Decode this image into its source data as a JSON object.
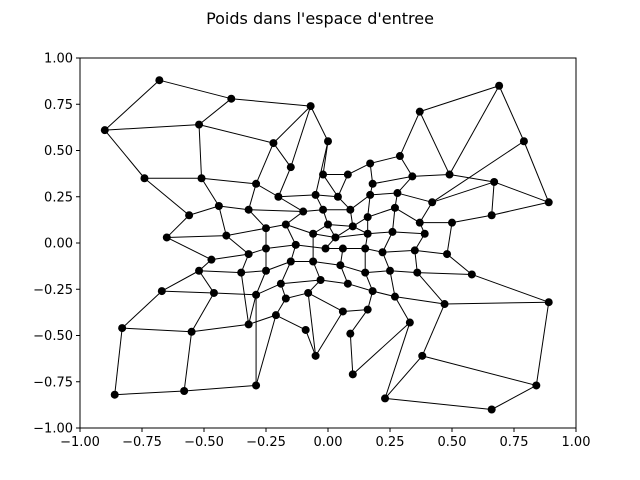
{
  "chart_data": {
    "type": "scatter",
    "title": "Poids dans l'espace d'entree",
    "xlabel": "",
    "ylabel": "",
    "xlim": [
      -1.0,
      1.0
    ],
    "ylim": [
      -1.0,
      1.0
    ],
    "xticks": [
      -1.0,
      -0.75,
      -0.5,
      -0.25,
      0.0,
      0.25,
      0.5,
      0.75,
      1.0
    ],
    "xtick_labels": [
      "−1.00",
      "−0.75",
      "−0.50",
      "−0.25",
      "0.00",
      "0.25",
      "0.50",
      "0.75",
      "1.00"
    ],
    "yticks": [
      -1.0,
      -0.75,
      -0.5,
      -0.25,
      0.0,
      0.25,
      0.5,
      0.75,
      1.0
    ],
    "ytick_labels": [
      "−1.00",
      "−0.75",
      "−0.50",
      "−0.25",
      "0.00",
      "0.25",
      "0.50",
      "0.75",
      "1.00"
    ],
    "grid": false,
    "marker_color": "#000000",
    "line_color": "#000000",
    "nodes": [
      {
        "id": "A",
        "x": -0.68,
        "y": 0.88
      },
      {
        "id": "B",
        "x": -0.39,
        "y": 0.78
      },
      {
        "id": "C",
        "x": -0.07,
        "y": 0.74
      },
      {
        "id": "D",
        "x": 0.0,
        "y": 0.55
      },
      {
        "id": "E",
        "x": -0.22,
        "y": 0.54
      },
      {
        "id": "F",
        "x": -0.52,
        "y": 0.64
      },
      {
        "id": "G",
        "x": -0.9,
        "y": 0.61
      },
      {
        "id": "H",
        "x": -0.74,
        "y": 0.35
      },
      {
        "id": "I",
        "x": -0.51,
        "y": 0.35
      },
      {
        "id": "J",
        "x": -0.29,
        "y": 0.32
      },
      {
        "id": "K",
        "x": -0.15,
        "y": 0.41
      },
      {
        "id": "L",
        "x": -0.02,
        "y": 0.37
      },
      {
        "id": "M",
        "x": 0.08,
        "y": 0.37
      },
      {
        "id": "N",
        "x": 0.17,
        "y": 0.43
      },
      {
        "id": "O",
        "x": 0.29,
        "y": 0.47
      },
      {
        "id": "P",
        "x": 0.37,
        "y": 0.71
      },
      {
        "id": "Q",
        "x": 0.69,
        "y": 0.85
      },
      {
        "id": "R",
        "x": 0.79,
        "y": 0.55
      },
      {
        "id": "S",
        "x": 0.89,
        "y": 0.22
      },
      {
        "id": "T",
        "x": 0.67,
        "y": 0.33
      },
      {
        "id": "U",
        "x": 0.49,
        "y": 0.37
      },
      {
        "id": "V",
        "x": 0.34,
        "y": 0.36
      },
      {
        "id": "W",
        "x": 0.18,
        "y": 0.32
      },
      {
        "id": "X",
        "x": -0.05,
        "y": 0.26
      },
      {
        "id": "Y",
        "x": 0.04,
        "y": 0.25
      },
      {
        "id": "Z",
        "x": -0.2,
        "y": 0.25
      },
      {
        "id": "AA",
        "x": -0.44,
        "y": 0.2
      },
      {
        "id": "AB",
        "x": -0.56,
        "y": 0.15
      },
      {
        "id": "AC",
        "x": -0.65,
        "y": 0.03
      },
      {
        "id": "AD",
        "x": -0.41,
        "y": 0.04
      },
      {
        "id": "AE",
        "x": -0.32,
        "y": 0.18
      },
      {
        "id": "AF",
        "x": -0.1,
        "y": 0.17
      },
      {
        "id": "AG",
        "x": -0.02,
        "y": 0.18
      },
      {
        "id": "AH",
        "x": 0.09,
        "y": 0.18
      },
      {
        "id": "AI",
        "x": 0.17,
        "y": 0.26
      },
      {
        "id": "AJ",
        "x": 0.28,
        "y": 0.27
      },
      {
        "id": "AK",
        "x": 0.42,
        "y": 0.22
      },
      {
        "id": "AL",
        "x": 0.66,
        "y": 0.15
      },
      {
        "id": "AM",
        "x": 0.5,
        "y": 0.11
      },
      {
        "id": "AN",
        "x": 0.37,
        "y": 0.11
      },
      {
        "id": "AO",
        "x": 0.27,
        "y": 0.19
      },
      {
        "id": "AP",
        "x": 0.16,
        "y": 0.14
      },
      {
        "id": "AQ",
        "x": 0.1,
        "y": 0.09
      },
      {
        "id": "AR",
        "x": 0.0,
        "y": 0.1
      },
      {
        "id": "AS",
        "x": -0.17,
        "y": 0.1
      },
      {
        "id": "AT",
        "x": -0.25,
        "y": 0.08
      },
      {
        "id": "AU",
        "x": -0.06,
        "y": 0.05
      },
      {
        "id": "AV",
        "x": 0.03,
        "y": 0.03
      },
      {
        "id": "AW",
        "x": 0.16,
        "y": 0.05
      },
      {
        "id": "AX",
        "x": 0.26,
        "y": 0.06
      },
      {
        "id": "AY",
        "x": 0.39,
        "y": 0.05
      },
      {
        "id": "AZ",
        "x": -0.13,
        "y": -0.01
      },
      {
        "id": "BA",
        "x": -0.25,
        "y": -0.03
      },
      {
        "id": "BB",
        "x": -0.32,
        "y": -0.06
      },
      {
        "id": "BC",
        "x": -0.47,
        "y": -0.09
      },
      {
        "id": "BD",
        "x": -0.52,
        "y": -0.15
      },
      {
        "id": "BE",
        "x": -0.35,
        "y": -0.16
      },
      {
        "id": "BF",
        "x": -0.25,
        "y": -0.15
      },
      {
        "id": "BG",
        "x": -0.15,
        "y": -0.1
      },
      {
        "id": "BH",
        "x": -0.06,
        "y": -0.1
      },
      {
        "id": "BI",
        "x": -0.01,
        "y": -0.03
      },
      {
        "id": "BJ",
        "x": 0.06,
        "y": -0.03
      },
      {
        "id": "BK",
        "x": 0.15,
        "y": -0.03
      },
      {
        "id": "BL",
        "x": 0.22,
        "y": -0.05
      },
      {
        "id": "BM",
        "x": 0.35,
        "y": -0.04
      },
      {
        "id": "BN",
        "x": 0.48,
        "y": -0.06
      },
      {
        "id": "BO",
        "x": 0.58,
        "y": -0.17
      },
      {
        "id": "BP",
        "x": 0.36,
        "y": -0.16
      },
      {
        "id": "BQ",
        "x": 0.25,
        "y": -0.15
      },
      {
        "id": "BR",
        "x": 0.15,
        "y": -0.16
      },
      {
        "id": "BS",
        "x": 0.05,
        "y": -0.12
      },
      {
        "id": "BT",
        "x": -0.03,
        "y": -0.2
      },
      {
        "id": "BU",
        "x": -0.08,
        "y": -0.27
      },
      {
        "id": "BV",
        "x": -0.17,
        "y": -0.3
      },
      {
        "id": "BW",
        "x": -0.19,
        "y": -0.22
      },
      {
        "id": "BX",
        "x": -0.29,
        "y": -0.28
      },
      {
        "id": "BY",
        "x": -0.46,
        "y": -0.27
      },
      {
        "id": "BZ",
        "x": -0.67,
        "y": -0.26
      },
      {
        "id": "CA",
        "x": -0.83,
        "y": -0.46
      },
      {
        "id": "CB",
        "x": -0.55,
        "y": -0.48
      },
      {
        "id": "CC",
        "x": -0.32,
        "y": -0.44
      },
      {
        "id": "CD",
        "x": -0.21,
        "y": -0.39
      },
      {
        "id": "CE",
        "x": -0.09,
        "y": -0.47
      },
      {
        "id": "CF",
        "x": -0.05,
        "y": -0.61
      },
      {
        "id": "CG",
        "x": 0.06,
        "y": -0.37
      },
      {
        "id": "CH",
        "x": 0.08,
        "y": -0.22
      },
      {
        "id": "CI",
        "x": 0.18,
        "y": -0.26
      },
      {
        "id": "CJ",
        "x": 0.27,
        "y": -0.29
      },
      {
        "id": "CK",
        "x": 0.16,
        "y": -0.36
      },
      {
        "id": "CL",
        "x": 0.33,
        "y": -0.43
      },
      {
        "id": "CM",
        "x": 0.47,
        "y": -0.33
      },
      {
        "id": "CN",
        "x": 0.89,
        "y": -0.32
      },
      {
        "id": "CO",
        "x": 0.38,
        "y": -0.61
      },
      {
        "id": "CP",
        "x": 0.09,
        "y": -0.49
      },
      {
        "id": "CQ",
        "x": 0.1,
        "y": -0.71
      },
      {
        "id": "CR",
        "x": 0.23,
        "y": -0.84
      },
      {
        "id": "CS",
        "x": 0.66,
        "y": -0.9
      },
      {
        "id": "CT",
        "x": 0.84,
        "y": -0.77
      },
      {
        "id": "CU",
        "x": -0.29,
        "y": -0.77
      },
      {
        "id": "CV",
        "x": -0.58,
        "y": -0.8
      },
      {
        "id": "CW",
        "x": -0.86,
        "y": -0.82
      }
    ],
    "edges": [
      [
        "A",
        "B"
      ],
      [
        "B",
        "C"
      ],
      [
        "C",
        "D"
      ],
      [
        "C",
        "E"
      ],
      [
        "A",
        "G"
      ],
      [
        "G",
        "F"
      ],
      [
        "F",
        "B"
      ],
      [
        "F",
        "E"
      ],
      [
        "E",
        "J"
      ],
      [
        "E",
        "K"
      ],
      [
        "K",
        "C"
      ],
      [
        "K",
        "Z"
      ],
      [
        "D",
        "L"
      ],
      [
        "D",
        "X"
      ],
      [
        "G",
        "H"
      ],
      [
        "F",
        "I"
      ],
      [
        "H",
        "I"
      ],
      [
        "I",
        "J"
      ],
      [
        "H",
        "AB"
      ],
      [
        "I",
        "AA"
      ],
      [
        "J",
        "Z"
      ],
      [
        "J",
        "AE"
      ],
      [
        "AB",
        "AC"
      ],
      [
        "AB",
        "AA"
      ],
      [
        "AA",
        "AD"
      ],
      [
        "AA",
        "AE"
      ],
      [
        "AE",
        "AF"
      ],
      [
        "AE",
        "AT"
      ],
      [
        "AF",
        "Z"
      ],
      [
        "AF",
        "AG"
      ],
      [
        "AF",
        "AS"
      ],
      [
        "Z",
        "X"
      ],
      [
        "X",
        "Y"
      ],
      [
        "X",
        "AG"
      ],
      [
        "Y",
        "L"
      ],
      [
        "Y",
        "M"
      ],
      [
        "Y",
        "AH"
      ],
      [
        "L",
        "M"
      ],
      [
        "M",
        "N"
      ],
      [
        "N",
        "O"
      ],
      [
        "N",
        "W"
      ],
      [
        "O",
        "P"
      ],
      [
        "O",
        "V"
      ],
      [
        "P",
        "Q"
      ],
      [
        "P",
        "U"
      ],
      [
        "Q",
        "R"
      ],
      [
        "Q",
        "U"
      ],
      [
        "R",
        "S"
      ],
      [
        "R",
        "AK"
      ],
      [
        "U",
        "V"
      ],
      [
        "U",
        "T"
      ],
      [
        "T",
        "S"
      ],
      [
        "T",
        "AK"
      ],
      [
        "T",
        "AL"
      ],
      [
        "S",
        "AL"
      ],
      [
        "V",
        "W"
      ],
      [
        "V",
        "AJ"
      ],
      [
        "W",
        "AI"
      ],
      [
        "AI",
        "AJ"
      ],
      [
        "AI",
        "AH"
      ],
      [
        "AI",
        "AP"
      ],
      [
        "AJ",
        "AK"
      ],
      [
        "AJ",
        "AO"
      ],
      [
        "AK",
        "AN"
      ],
      [
        "AL",
        "AM"
      ],
      [
        "AM",
        "AN"
      ],
      [
        "AM",
        "BN"
      ],
      [
        "AN",
        "AO"
      ],
      [
        "AN",
        "AY"
      ],
      [
        "AO",
        "AP"
      ],
      [
        "AO",
        "AX"
      ],
      [
        "AP",
        "AQ"
      ],
      [
        "AP",
        "AW"
      ],
      [
        "AH",
        "AQ"
      ],
      [
        "AH",
        "AG"
      ],
      [
        "AG",
        "AR"
      ],
      [
        "AR",
        "AU"
      ],
      [
        "AR",
        "AQ"
      ],
      [
        "AR",
        "AV"
      ],
      [
        "AQ",
        "AV"
      ],
      [
        "AQ",
        "AW"
      ],
      [
        "AS",
        "AT"
      ],
      [
        "AS",
        "AU"
      ],
      [
        "AS",
        "AZ"
      ],
      [
        "AT",
        "AD"
      ],
      [
        "AT",
        "BA"
      ],
      [
        "AD",
        "AC"
      ],
      [
        "AD",
        "BB"
      ],
      [
        "AC",
        "BC"
      ],
      [
        "BC",
        "BB"
      ],
      [
        "BC",
        "BD"
      ],
      [
        "BB",
        "BA"
      ],
      [
        "BB",
        "BE"
      ],
      [
        "BA",
        "AZ"
      ],
      [
        "BA",
        "BF"
      ],
      [
        "AZ",
        "BI"
      ],
      [
        "AZ",
        "BG"
      ],
      [
        "AU",
        "AV"
      ],
      [
        "AU",
        "BH"
      ],
      [
        "AV",
        "BI"
      ],
      [
        "AV",
        "AW"
      ],
      [
        "AW",
        "AX"
      ],
      [
        "AW",
        "BK"
      ],
      [
        "AX",
        "AY"
      ],
      [
        "AX",
        "BL"
      ],
      [
        "AY",
        "BM"
      ],
      [
        "BI",
        "BJ"
      ],
      [
        "BJ",
        "BK"
      ],
      [
        "BJ",
        "BS"
      ],
      [
        "BK",
        "BL"
      ],
      [
        "BK",
        "BR"
      ],
      [
        "BL",
        "BM"
      ],
      [
        "BL",
        "BQ"
      ],
      [
        "BM",
        "BN"
      ],
      [
        "BM",
        "BP"
      ],
      [
        "BN",
        "BO"
      ],
      [
        "BO",
        "BP"
      ],
      [
        "BO",
        "CN"
      ],
      [
        "BP",
        "BQ"
      ],
      [
        "BP",
        "CM"
      ],
      [
        "BQ",
        "BR"
      ],
      [
        "BQ",
        "CJ"
      ],
      [
        "BR",
        "BS"
      ],
      [
        "BR",
        "CI"
      ],
      [
        "BS",
        "BH"
      ],
      [
        "BS",
        "CH"
      ],
      [
        "BH",
        "BG"
      ],
      [
        "BH",
        "BT"
      ],
      [
        "BG",
        "BF"
      ],
      [
        "BG",
        "BW"
      ],
      [
        "BF",
        "BE"
      ],
      [
        "BF",
        "BX"
      ],
      [
        "BE",
        "BD"
      ],
      [
        "BE",
        "CC"
      ],
      [
        "BD",
        "BZ"
      ],
      [
        "BD",
        "BY"
      ],
      [
        "BY",
        "BX"
      ],
      [
        "BY",
        "CB"
      ],
      [
        "BX",
        "BW"
      ],
      [
        "BX",
        "CU"
      ],
      [
        "BW",
        "BT"
      ],
      [
        "BW",
        "BV"
      ],
      [
        "BT",
        "CH"
      ],
      [
        "BT",
        "BU"
      ],
      [
        "BU",
        "BV"
      ],
      [
        "BU",
        "CG"
      ],
      [
        "BU",
        "CF"
      ],
      [
        "BV",
        "CD"
      ],
      [
        "CD",
        "CE"
      ],
      [
        "CE",
        "CF"
      ],
      [
        "CF",
        "CG"
      ],
      [
        "CG",
        "CK"
      ],
      [
        "CH",
        "CI"
      ],
      [
        "CI",
        "CJ"
      ],
      [
        "CI",
        "CK"
      ],
      [
        "CJ",
        "CM"
      ],
      [
        "CJ",
        "CL"
      ],
      [
        "CM",
        "CN"
      ],
      [
        "CM",
        "CO"
      ],
      [
        "CN",
        "CT"
      ],
      [
        "CT",
        "CO"
      ],
      [
        "CT",
        "CS"
      ],
      [
        "CS",
        "CR"
      ],
      [
        "CR",
        "CL"
      ],
      [
        "CR",
        "CO"
      ],
      [
        "CL",
        "CQ"
      ],
      [
        "CK",
        "CP"
      ],
      [
        "CP",
        "CQ"
      ],
      [
        "CZ",
        "CZ"
      ],
      [
        "BZ",
        "CA"
      ],
      [
        "BZ",
        "BY"
      ],
      [
        "CA",
        "CB"
      ],
      [
        "CA",
        "CW"
      ],
      [
        "CB",
        "CC"
      ],
      [
        "CB",
        "CV"
      ],
      [
        "CV",
        "CW"
      ],
      [
        "CC",
        "CD"
      ],
      [
        "CC",
        "BX"
      ],
      [
        "CU",
        "CV"
      ],
      [
        "CU",
        "CD"
      ]
    ]
  }
}
